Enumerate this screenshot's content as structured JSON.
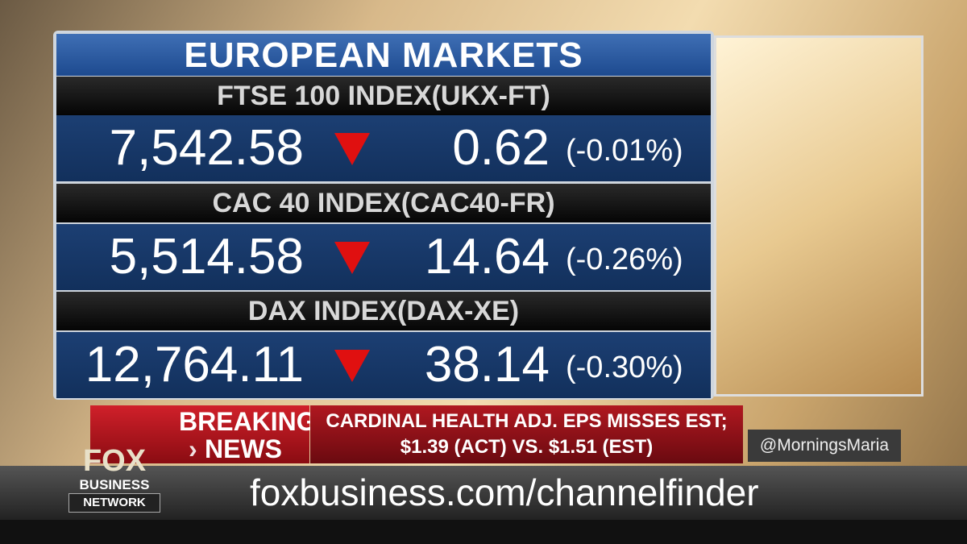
{
  "panel": {
    "title": "EUROPEAN MARKETS",
    "rows": [
      {
        "name": "FTSE 100 INDEX",
        "symbol": "(UKX-FT)",
        "value": "7,542.58",
        "change": "0.62",
        "percent": "(-0.01%)"
      },
      {
        "name": "CAC 40 INDEX",
        "symbol": "(CAC40-FR)",
        "value": "5,514.58",
        "change": "14.64",
        "percent": "(-0.26%)"
      },
      {
        "name": "DAX INDEX",
        "symbol": "(DAX-XE)",
        "value": "12,764.11",
        "change": "38.14",
        "percent": "(-0.30%)"
      }
    ]
  },
  "breaking": {
    "label_top": "BREAKING",
    "label_bottom": "NEWS",
    "headline": [
      "CARDINAL HEALTH ADJ. EPS MISSES EST;",
      "$1.39 (ACT) VS. $1.51 (EST)"
    ]
  },
  "handle": "@MorningsMaria",
  "logo": {
    "top": "FOX",
    "middle": "BUSINESS",
    "bottom": "NETWORK"
  },
  "ticker": "foxbusiness.com/channelfinder"
}
